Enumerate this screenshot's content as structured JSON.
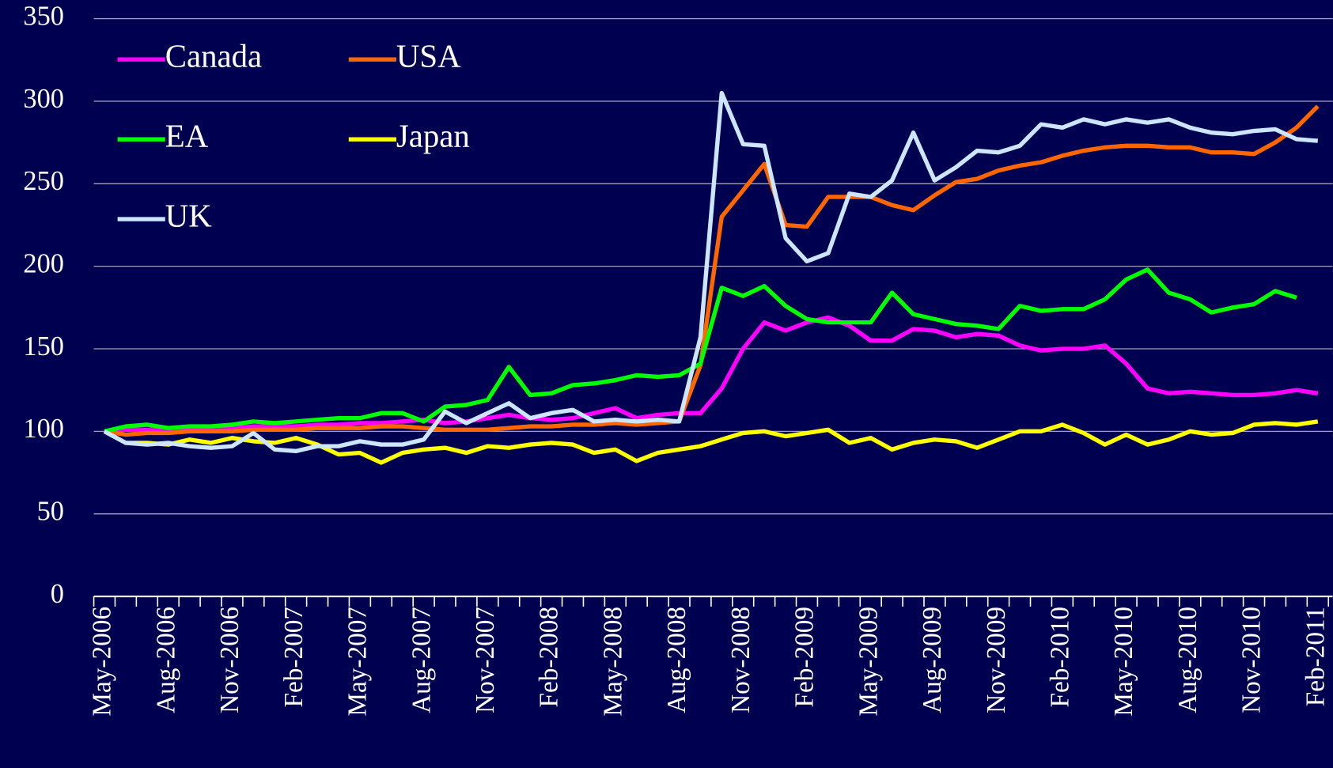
{
  "chart_data": {
    "type": "line",
    "categories": [
      "May-2006",
      null,
      null,
      "Aug-2006",
      null,
      null,
      "Nov-2006",
      null,
      null,
      "Feb-2007",
      null,
      null,
      "May-2007",
      null,
      null,
      "Aug-2007",
      null,
      null,
      "Nov-2007",
      null,
      null,
      "Feb-2008",
      null,
      null,
      "May-2008",
      null,
      null,
      "Aug-2008",
      null,
      null,
      "Nov-2008",
      null,
      null,
      "Feb-2009",
      null,
      null,
      "May-2009",
      null,
      null,
      "Aug-2009",
      null,
      null,
      "Nov-2009",
      null,
      null,
      "Feb-2010",
      null,
      null,
      "May-2010",
      null,
      null,
      "Aug-2010",
      null,
      null,
      "Nov-2010",
      null,
      null,
      "Feb-2011"
    ],
    "series": [
      {
        "name": "Canada",
        "color": "#ff00ff",
        "values": [
          100,
          101,
          101,
          101,
          102,
          102,
          102,
          103,
          103,
          103,
          104,
          104,
          105,
          105,
          106,
          107,
          105,
          106,
          108,
          110,
          108,
          107,
          108,
          111,
          114,
          108,
          110,
          111,
          111,
          126,
          150,
          166,
          161,
          166,
          169,
          164,
          155,
          155,
          162,
          161,
          157,
          159,
          158,
          152,
          149,
          150,
          150,
          152,
          141,
          126,
          123,
          124,
          123,
          122,
          122,
          123,
          125,
          123
        ]
      },
      {
        "name": "USA",
        "color": "#ff6600",
        "values": [
          100,
          98,
          99,
          99,
          100,
          100,
          100,
          101,
          101,
          101,
          102,
          102,
          102,
          103,
          103,
          102,
          101,
          101,
          101,
          102,
          103,
          103,
          104,
          104,
          105,
          104,
          105,
          106,
          140,
          230,
          246,
          262,
          225,
          224,
          242,
          242,
          242,
          237,
          234,
          243,
          251,
          253,
          258,
          261,
          263,
          267,
          270,
          272,
          273,
          273,
          272,
          272,
          269,
          269,
          268,
          275,
          284,
          297
        ]
      },
      {
        "name": "EA",
        "color": "#00ff00",
        "values": [
          100,
          103,
          104,
          102,
          103,
          103,
          104,
          106,
          105,
          106,
          107,
          108,
          108,
          111,
          111,
          106,
          115,
          116,
          119,
          139,
          122,
          123,
          128,
          129,
          131,
          134,
          133,
          134,
          141,
          187,
          182,
          188,
          176,
          168,
          166,
          166,
          166,
          184,
          171,
          168,
          165,
          164,
          162,
          176,
          173,
          174,
          174,
          180,
          192,
          198,
          184,
          180,
          172,
          175,
          177,
          185,
          181,
          null
        ]
      },
      {
        "name": "Japan",
        "color": "#ffff00",
        "values": [
          100,
          93,
          93,
          92,
          95,
          93,
          96,
          94,
          93,
          96,
          92,
          86,
          87,
          81,
          87,
          89,
          90,
          87,
          91,
          90,
          92,
          93,
          92,
          87,
          89,
          82,
          87,
          89,
          91,
          95,
          99,
          100,
          97,
          99,
          101,
          93,
          96,
          89,
          93,
          95,
          94,
          90,
          95,
          100,
          100,
          104,
          99,
          92,
          98,
          92,
          95,
          100,
          98,
          99,
          104,
          105,
          104,
          106
        ]
      },
      {
        "name": "UK",
        "color": "#cce6ff",
        "values": [
          100,
          93,
          92,
          93,
          91,
          90,
          91,
          99,
          89,
          88,
          91,
          91,
          94,
          92,
          92,
          95,
          112,
          105,
          111,
          117,
          108,
          111,
          113,
          106,
          107,
          106,
          107,
          106,
          157,
          305,
          274,
          273,
          217,
          203,
          208,
          244,
          242,
          252,
          281,
          252,
          260,
          270,
          269,
          273,
          286,
          284,
          289,
          286,
          289,
          287,
          289,
          284,
          281,
          280,
          282,
          283,
          277,
          276
        ]
      }
    ],
    "ylim": [
      0,
      350
    ],
    "yticks": [
      0,
      50,
      100,
      150,
      200,
      250,
      300,
      350
    ],
    "grid": true,
    "legend": "top-left"
  }
}
